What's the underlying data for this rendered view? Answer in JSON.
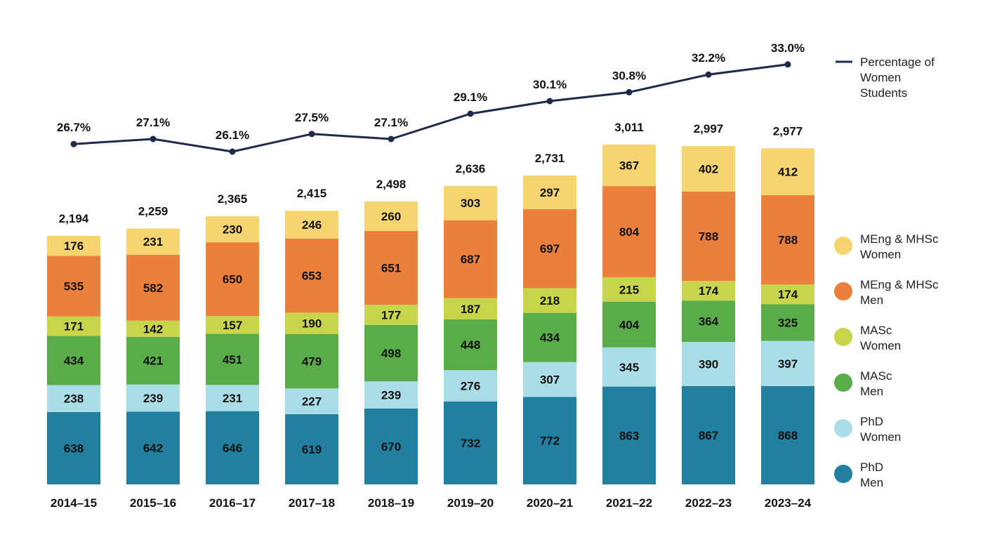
{
  "chart_data": {
    "type": "bar",
    "stacked": true,
    "categories": [
      "2014–15",
      "2015–16",
      "2016–17",
      "2017–18",
      "2018–19",
      "2019–20",
      "2020–21",
      "2021–22",
      "2022–23",
      "2023–24"
    ],
    "series": [
      {
        "name": "PhD\nMen",
        "color": "#21809f",
        "values": [
          638,
          642,
          646,
          619,
          670,
          732,
          772,
          863,
          867,
          868
        ]
      },
      {
        "name": "PhD\nWomen",
        "color": "#abdde8",
        "values": [
          238,
          239,
          231,
          227,
          239,
          276,
          307,
          345,
          390,
          397
        ]
      },
      {
        "name": "MASc\nMen",
        "color": "#5aac4b",
        "values": [
          434,
          421,
          451,
          479,
          498,
          448,
          434,
          404,
          364,
          325
        ]
      },
      {
        "name": "MASc\nWomen",
        "color": "#c6d54a",
        "values": [
          171,
          142,
          157,
          190,
          177,
          187,
          218,
          215,
          174,
          174
        ]
      },
      {
        "name": "MEng & MHSc\nMen",
        "color": "#eb803e",
        "values": [
          535,
          582,
          650,
          653,
          651,
          687,
          697,
          804,
          788,
          788
        ]
      },
      {
        "name": "MEng & MHSc\nWomen",
        "color": "#f6d570",
        "values": [
          176,
          231,
          230,
          246,
          260,
          303,
          297,
          367,
          402,
          412
        ]
      }
    ],
    "totals": [
      "2,194",
      "2,259",
      "2,365",
      "2,415",
      "2,498",
      "2,636",
      "2,731",
      "3,011",
      "2,997",
      "2,977"
    ],
    "line": {
      "name": "Percentage of\nWomen\nStudents",
      "color": "#1e2a4a",
      "values": [
        26.7,
        27.1,
        26.1,
        27.5,
        27.1,
        29.1,
        30.1,
        30.8,
        32.2,
        33.0
      ],
      "labels": [
        "26.7%",
        "27.1%",
        "26.1%",
        "27.5%",
        "27.1%",
        "29.1%",
        "30.1%",
        "30.8%",
        "32.2%",
        "33.0%"
      ]
    },
    "legend_position": "right"
  }
}
